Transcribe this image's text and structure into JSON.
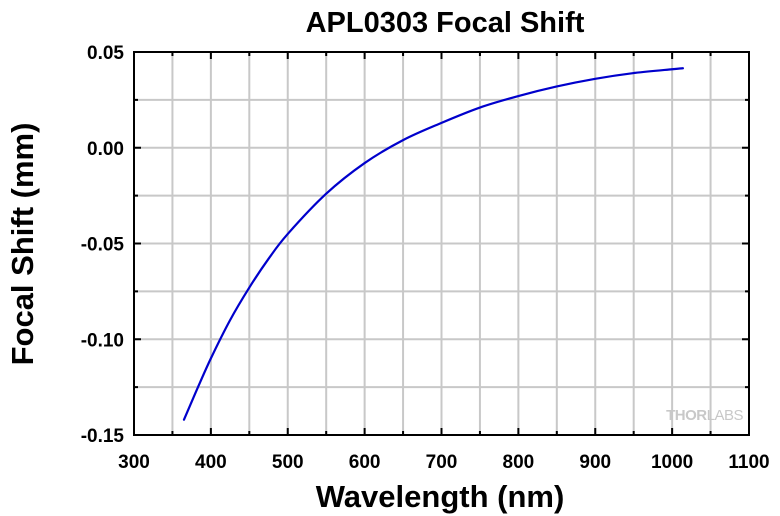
{
  "chart_data": {
    "type": "line",
    "title": "APL0303 Focal Shift",
    "xlabel": "Wavelength (nm)",
    "ylabel": "Focal Shift (mm)",
    "xlim": [
      300,
      1100
    ],
    "ylim": [
      -0.15,
      0.05
    ],
    "x_ticks": [
      "300",
      "400",
      "500",
      "600",
      "700",
      "800",
      "900",
      "1000",
      "1100"
    ],
    "y_ticks": [
      "0.05",
      "0.00",
      "-0.05",
      "-0.10",
      "-0.15"
    ],
    "grid": true,
    "series": [
      {
        "color": "#0000cc",
        "x": [
          365,
          380,
          400,
          425,
          450,
          475,
          500,
          550,
          600,
          650,
          700,
          750,
          800,
          850,
          900,
          950,
          1000,
          1014
        ],
        "y": [
          -0.142,
          -0.128,
          -0.11,
          -0.09,
          -0.073,
          -0.058,
          -0.045,
          -0.024,
          -0.008,
          0.004,
          0.013,
          0.021,
          0.027,
          0.032,
          0.036,
          0.039,
          0.041,
          0.0415
        ]
      }
    ]
  },
  "branding": {
    "watermark_prefix": "THOR",
    "watermark_suffix": "LABS"
  },
  "colors": {
    "grid": "#c8c8c8",
    "axis": "#000000",
    "series": "#0000cc"
  }
}
